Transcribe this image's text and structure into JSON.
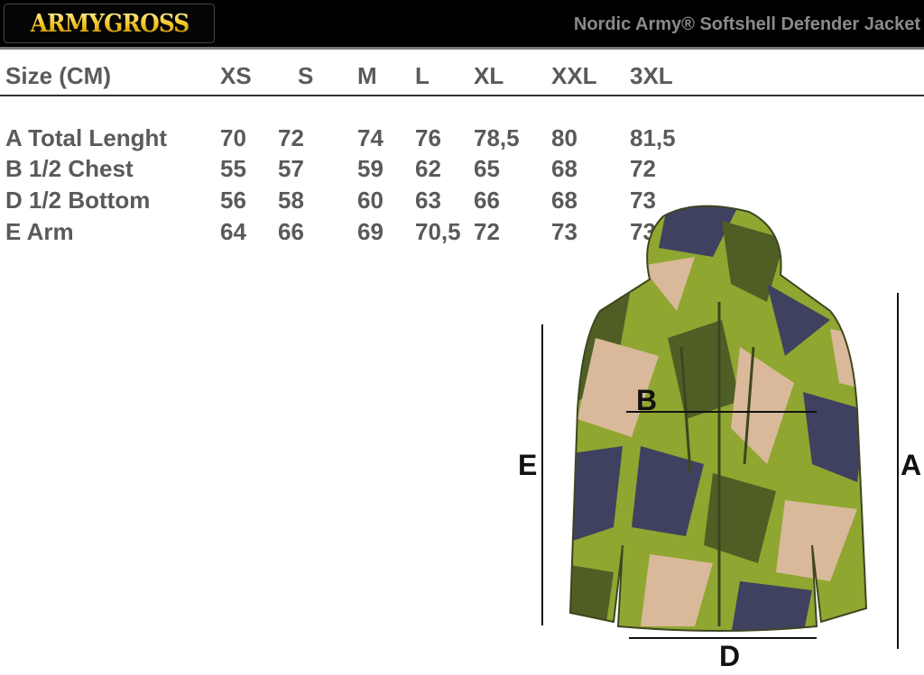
{
  "header": {
    "logo": "ARMYGROSS",
    "title": "Nordic Army® Softshell Defender Jacket"
  },
  "table": {
    "header_label": "Size (CM)",
    "sizes": [
      "XS",
      "S",
      "M",
      "L",
      "XL",
      "XXL",
      "3XL"
    ],
    "rows": [
      {
        "label": "A Total Lenght",
        "values": [
          "70",
          "72",
          "74",
          "76",
          "78,5",
          "80",
          "81,5"
        ]
      },
      {
        "label": "B 1/2 Chest",
        "values": [
          "55",
          "57",
          "59",
          "62",
          "65",
          "68",
          "72"
        ]
      },
      {
        "label": "D 1/2 Bottom",
        "values": [
          "56",
          "58",
          "60",
          "63",
          "66",
          "68",
          "73"
        ]
      },
      {
        "label": "E Arm",
        "values": [
          "64",
          "66",
          "69",
          "70,5",
          "72",
          "73",
          "73"
        ]
      }
    ]
  },
  "diagram": {
    "labels": {
      "a": "A",
      "b": "B",
      "d": "D",
      "e": "E"
    }
  },
  "colors": {
    "camo_green": "#8fa630",
    "camo_dark": "#4f5e25",
    "camo_navy": "#3f4160",
    "camo_tan": "#d9b99a",
    "text": "#5a5a5a"
  }
}
